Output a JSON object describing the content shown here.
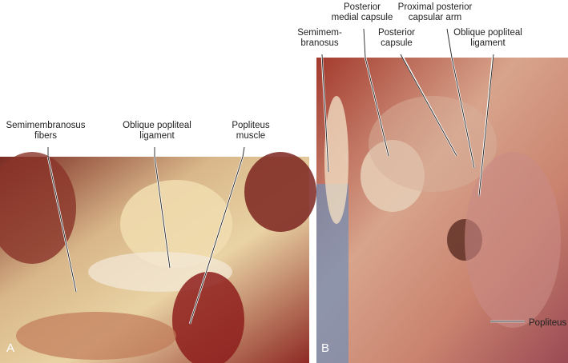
{
  "panels": [
    {
      "letter": "A",
      "labels": [
        {
          "lines": [
            "Semimembranosus",
            "fibers"
          ]
        },
        {
          "lines": [
            "Oblique popliteal",
            "ligament"
          ]
        },
        {
          "lines": [
            "Popliteus",
            "muscle"
          ]
        }
      ]
    },
    {
      "letter": "B",
      "labels": [
        {
          "lines": [
            "Semimem-",
            "branosus"
          ]
        },
        {
          "lines": [
            "Posterior",
            "medial capsule"
          ]
        },
        {
          "lines": [
            "Posterior",
            "capsule"
          ]
        },
        {
          "lines": [
            "Proximal posterior",
            "capsular arm"
          ]
        },
        {
          "lines": [
            "Oblique popliteal",
            "ligament"
          ]
        },
        {
          "lines": [
            "Popliteus"
          ]
        }
      ]
    }
  ]
}
